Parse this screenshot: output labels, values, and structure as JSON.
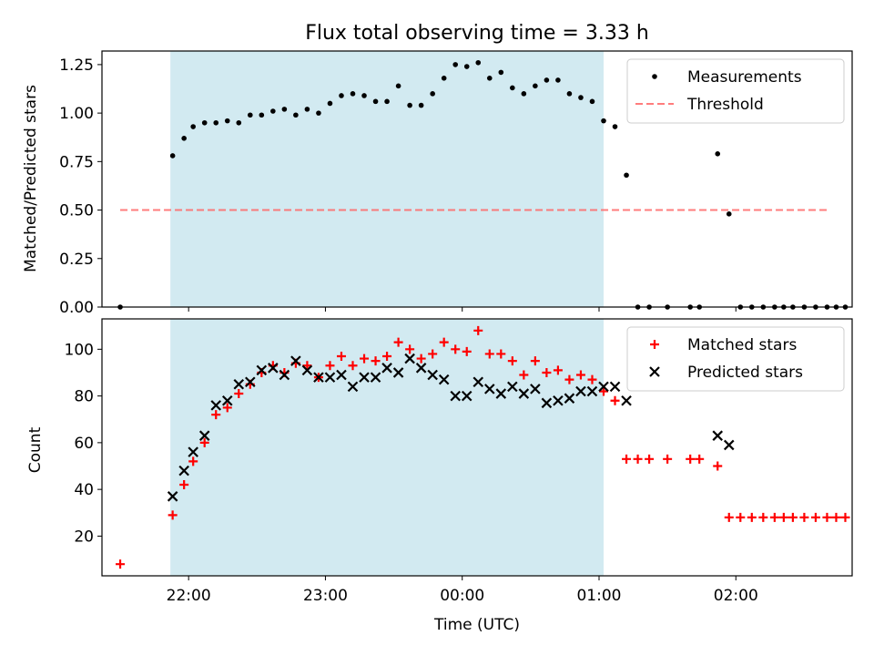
{
  "figure": {
    "title": "Flux total observing time = 3.33 h"
  },
  "chart_data": [
    {
      "type": "scatter",
      "ylabel": "Matched/Predicted stars",
      "xlabel": "",
      "ylim": [
        0,
        1.32
      ],
      "yticks": [
        "0.00",
        "0.25",
        "0.50",
        "0.75",
        "1.00",
        "1.25"
      ],
      "shaded_region": {
        "x_start": "21:52",
        "x_end": "01:02",
        "color": "#add8e6"
      },
      "legend_position": "top-right",
      "threshold": {
        "name": "Threshold",
        "value": 0.5,
        "x_start": "21:30",
        "x_end": "02:40",
        "color": "#ff6666"
      },
      "series": [
        {
          "name": "Measurements",
          "color": "#000000",
          "points": [
            [
              "21:30",
              0.0
            ],
            [
              "21:53",
              0.78
            ],
            [
              "21:58",
              0.87
            ],
            [
              "22:02",
              0.93
            ],
            [
              "22:07",
              0.95
            ],
            [
              "22:12",
              0.95
            ],
            [
              "22:17",
              0.96
            ],
            [
              "22:22",
              0.95
            ],
            [
              "22:27",
              0.99
            ],
            [
              "22:32",
              0.99
            ],
            [
              "22:37",
              1.01
            ],
            [
              "22:42",
              1.02
            ],
            [
              "22:47",
              0.99
            ],
            [
              "22:52",
              1.02
            ],
            [
              "22:57",
              1.0
            ],
            [
              "23:02",
              1.05
            ],
            [
              "23:07",
              1.09
            ],
            [
              "23:12",
              1.1
            ],
            [
              "23:17",
              1.09
            ],
            [
              "23:22",
              1.06
            ],
            [
              "23:27",
              1.06
            ],
            [
              "23:32",
              1.14
            ],
            [
              "23:37",
              1.04
            ],
            [
              "23:42",
              1.04
            ],
            [
              "23:47",
              1.1
            ],
            [
              "23:52",
              1.18
            ],
            [
              "23:57",
              1.25
            ],
            [
              "00:02",
              1.24
            ],
            [
              "00:07",
              1.26
            ],
            [
              "00:12",
              1.18
            ],
            [
              "00:17",
              1.21
            ],
            [
              "00:22",
              1.13
            ],
            [
              "00:27",
              1.1
            ],
            [
              "00:32",
              1.14
            ],
            [
              "00:37",
              1.17
            ],
            [
              "00:42",
              1.17
            ],
            [
              "00:47",
              1.1
            ],
            [
              "00:52",
              1.08
            ],
            [
              "00:57",
              1.06
            ],
            [
              "01:02",
              0.96
            ],
            [
              "01:07",
              0.93
            ],
            [
              "01:12",
              0.68
            ],
            [
              "01:17",
              0.0
            ],
            [
              "01:22",
              0.0
            ],
            [
              "01:30",
              0.0
            ],
            [
              "01:40",
              0.0
            ],
            [
              "01:44",
              0.0
            ],
            [
              "01:52",
              0.79
            ],
            [
              "01:57",
              0.48
            ],
            [
              "02:02",
              0.0
            ],
            [
              "02:07",
              0.0
            ],
            [
              "02:12",
              0.0
            ],
            [
              "02:17",
              0.0
            ],
            [
              "02:21",
              0.0
            ],
            [
              "02:25",
              0.0
            ],
            [
              "02:30",
              0.0
            ],
            [
              "02:35",
              0.0
            ],
            [
              "02:40",
              0.0
            ],
            [
              "02:44",
              0.0
            ],
            [
              "02:48",
              0.0
            ]
          ]
        }
      ]
    },
    {
      "type": "scatter",
      "ylabel": "Count",
      "xlabel": "Time (UTC)",
      "ylim": [
        3,
        113
      ],
      "yticks": [
        "20",
        "40",
        "60",
        "80",
        "100"
      ],
      "xticks": [
        "22:00",
        "23:00",
        "00:00",
        "01:00",
        "02:00"
      ],
      "shaded_region": {
        "x_start": "21:52",
        "x_end": "01:02",
        "color": "#add8e6"
      },
      "legend_position": "top-right",
      "series": [
        {
          "name": "Matched stars",
          "marker": "plus",
          "color": "#ff0000",
          "points": [
            [
              "21:30",
              8
            ],
            [
              "21:53",
              29
            ],
            [
              "21:58",
              42
            ],
            [
              "22:02",
              52
            ],
            [
              "22:07",
              60
            ],
            [
              "22:12",
              72
            ],
            [
              "22:17",
              75
            ],
            [
              "22:22",
              81
            ],
            [
              "22:27",
              85
            ],
            [
              "22:32",
              90
            ],
            [
              "22:37",
              93
            ],
            [
              "22:42",
              90
            ],
            [
              "22:47",
              94
            ],
            [
              "22:52",
              93
            ],
            [
              "22:57",
              88
            ],
            [
              "23:02",
              93
            ],
            [
              "23:07",
              97
            ],
            [
              "23:12",
              93
            ],
            [
              "23:17",
              96
            ],
            [
              "23:22",
              95
            ],
            [
              "23:27",
              97
            ],
            [
              "23:32",
              103
            ],
            [
              "23:37",
              100
            ],
            [
              "23:42",
              96
            ],
            [
              "23:47",
              98
            ],
            [
              "23:52",
              103
            ],
            [
              "23:57",
              100
            ],
            [
              "00:02",
              99
            ],
            [
              "00:07",
              108
            ],
            [
              "00:12",
              98
            ],
            [
              "00:17",
              98
            ],
            [
              "00:22",
              95
            ],
            [
              "00:27",
              89
            ],
            [
              "00:32",
              95
            ],
            [
              "00:37",
              90
            ],
            [
              "00:42",
              91
            ],
            [
              "00:47",
              87
            ],
            [
              "00:52",
              89
            ],
            [
              "00:57",
              87
            ],
            [
              "01:02",
              82
            ],
            [
              "01:07",
              78
            ],
            [
              "01:12",
              53
            ],
            [
              "01:17",
              53
            ],
            [
              "01:22",
              53
            ],
            [
              "01:30",
              53
            ],
            [
              "01:40",
              53
            ],
            [
              "01:44",
              53
            ],
            [
              "01:52",
              50
            ],
            [
              "01:57",
              28
            ],
            [
              "02:02",
              28
            ],
            [
              "02:07",
              28
            ],
            [
              "02:12",
              28
            ],
            [
              "02:17",
              28
            ],
            [
              "02:21",
              28
            ],
            [
              "02:25",
              28
            ],
            [
              "02:30",
              28
            ],
            [
              "02:35",
              28
            ],
            [
              "02:40",
              28
            ],
            [
              "02:44",
              28
            ],
            [
              "02:48",
              28
            ]
          ]
        },
        {
          "name": "Predicted stars",
          "marker": "x",
          "color": "#000000",
          "points": [
            [
              "21:53",
              37
            ],
            [
              "21:58",
              48
            ],
            [
              "22:02",
              56
            ],
            [
              "22:07",
              63
            ],
            [
              "22:12",
              76
            ],
            [
              "22:17",
              78
            ],
            [
              "22:22",
              85
            ],
            [
              "22:27",
              86
            ],
            [
              "22:32",
              91
            ],
            [
              "22:37",
              92
            ],
            [
              "22:42",
              89
            ],
            [
              "22:47",
              95
            ],
            [
              "22:52",
              91
            ],
            [
              "22:57",
              88
            ],
            [
              "23:02",
              88
            ],
            [
              "23:07",
              89
            ],
            [
              "23:12",
              84
            ],
            [
              "23:17",
              88
            ],
            [
              "23:22",
              88
            ],
            [
              "23:27",
              92
            ],
            [
              "23:32",
              90
            ],
            [
              "23:37",
              96
            ],
            [
              "23:42",
              92
            ],
            [
              "23:47",
              89
            ],
            [
              "23:52",
              87
            ],
            [
              "23:57",
              80
            ],
            [
              "00:02",
              80
            ],
            [
              "00:07",
              86
            ],
            [
              "00:12",
              83
            ],
            [
              "00:17",
              81
            ],
            [
              "00:22",
              84
            ],
            [
              "00:27",
              81
            ],
            [
              "00:32",
              83
            ],
            [
              "00:37",
              77
            ],
            [
              "00:42",
              78
            ],
            [
              "00:47",
              79
            ],
            [
              "00:52",
              82
            ],
            [
              "00:57",
              82
            ],
            [
              "01:02",
              84
            ],
            [
              "01:07",
              84
            ],
            [
              "01:12",
              78
            ],
            [
              "01:52",
              63
            ],
            [
              "01:57",
              59
            ]
          ]
        }
      ]
    }
  ]
}
